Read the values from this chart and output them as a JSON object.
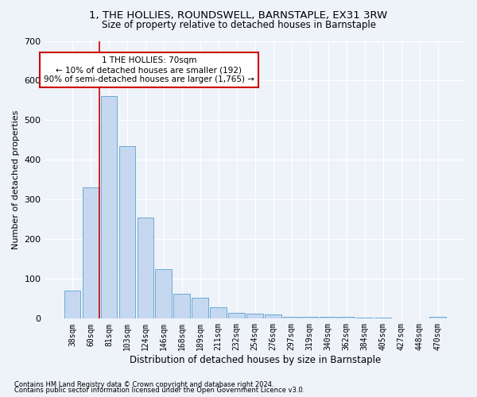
{
  "title1": "1, THE HOLLIES, ROUNDSWELL, BARNSTAPLE, EX31 3RW",
  "title2": "Size of property relative to detached houses in Barnstaple",
  "xlabel": "Distribution of detached houses by size in Barnstaple",
  "ylabel": "Number of detached properties",
  "bar_color": "#c5d8f0",
  "bar_edge_color": "#6aaad4",
  "bar_categories": [
    "38sqm",
    "60sqm",
    "81sqm",
    "103sqm",
    "124sqm",
    "146sqm",
    "168sqm",
    "189sqm",
    "211sqm",
    "232sqm",
    "254sqm",
    "276sqm",
    "297sqm",
    "319sqm",
    "340sqm",
    "362sqm",
    "384sqm",
    "405sqm",
    "427sqm",
    "448sqm",
    "470sqm"
  ],
  "bar_values": [
    70,
    330,
    560,
    435,
    255,
    125,
    63,
    52,
    28,
    15,
    12,
    11,
    5,
    5,
    4,
    4,
    2,
    2,
    1,
    1,
    5
  ],
  "vline_x": 1.5,
  "vline_color": "#cc0000",
  "annotation_text": "1 THE HOLLIES: 70sqm\n← 10% of detached houses are smaller (192)\n90% of semi-detached houses are larger (1,765) →",
  "annotation_box_color": "#ffffff",
  "annotation_box_edge": "#cc0000",
  "footnote1": "Contains HM Land Registry data © Crown copyright and database right 2024.",
  "footnote2": "Contains public sector information licensed under the Open Government Licence v3.0.",
  "ylim": [
    0,
    700
  ],
  "yticks": [
    0,
    100,
    200,
    300,
    400,
    500,
    600,
    700
  ],
  "background_color": "#eef2f9",
  "grid_color": "#ffffff",
  "title1_fontsize": 9.5,
  "title2_fontsize": 8.5
}
